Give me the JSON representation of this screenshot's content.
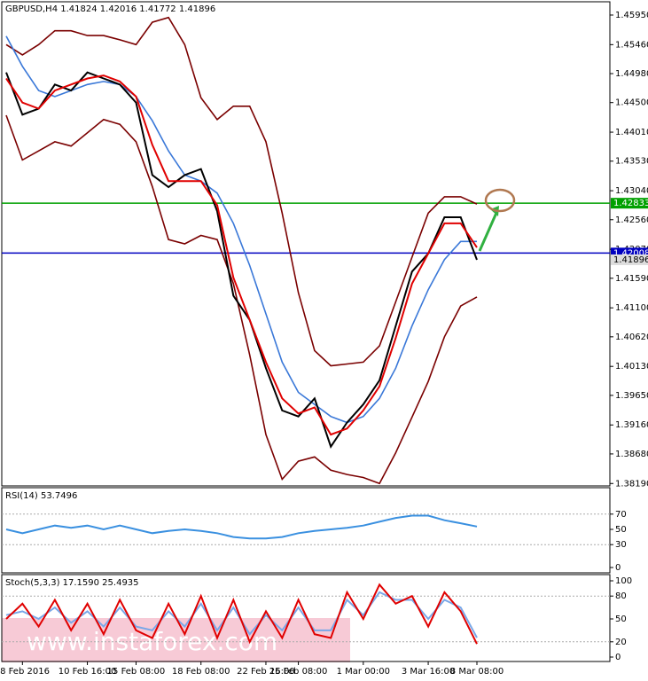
{
  "chart_data": [
    {
      "type": "line",
      "title": "GBPUSD,H4  1.41824 1.42016 1.41772 1.41896",
      "categories": [
        null,
        "8 Feb 2016",
        null,
        null,
        null,
        "10 Feb 16:00",
        null,
        null,
        "15 Feb 08:00",
        null,
        null,
        null,
        "18 Feb 08:00",
        null,
        null,
        null,
        "22 Feb 16:00",
        null,
        "25 Feb 08:00",
        null,
        null,
        null,
        "1 Mar 00:00",
        null,
        null,
        null,
        "3 Mar 16:00",
        null,
        null,
        "8 Mar 08:00"
      ],
      "series": [
        {
          "color": "#7a0000",
          "values": [
            1.4546,
            1.4529,
            1.4546,
            1.4569,
            1.4569,
            1.4561,
            1.4561,
            1.4554,
            1.4546,
            1.4583,
            1.4591,
            1.4546,
            1.4458,
            1.4422,
            1.4444,
            1.4444,
            1.4385,
            1.4267,
            1.4135,
            1.4039,
            1.4014,
            1.4017,
            1.402,
            1.4047,
            1.412,
            1.4194,
            1.4267,
            1.4294,
            1.4294,
            1.4282
          ]
        },
        {
          "color": "#7a0000",
          "values": [
            1.4429,
            1.4355,
            1.437,
            1.4385,
            1.4378,
            1.44,
            1.4422,
            1.4414,
            1.4385,
            1.4311,
            1.4223,
            1.4216,
            1.423,
            1.4223,
            1.415,
            1.4032,
            1.39,
            1.3826,
            1.3856,
            1.3863,
            1.3841,
            1.3834,
            1.3829,
            1.3819,
            1.387,
            1.3929,
            1.3988,
            1.4062,
            1.4113,
            1.4128
          ]
        },
        {
          "color": "#3a78d8",
          "values": [
            1.456,
            1.451,
            1.447,
            1.446,
            1.447,
            1.448,
            1.4485,
            1.448,
            1.446,
            1.442,
            1.437,
            1.433,
            1.432,
            1.43,
            1.425,
            1.418,
            1.41,
            1.402,
            1.397,
            1.395,
            1.393,
            1.392,
            1.393,
            1.396,
            1.401,
            1.408,
            1.414,
            1.419,
            1.422,
            1.422
          ]
        },
        {
          "color": "#000000",
          "values": [
            1.45,
            1.443,
            1.444,
            1.448,
            1.447,
            1.45,
            1.449,
            1.448,
            1.445,
            1.433,
            1.431,
            1.433,
            1.434,
            1.427,
            1.413,
            1.409,
            1.401,
            1.394,
            1.393,
            1.396,
            1.388,
            1.392,
            1.395,
            1.399,
            1.408,
            1.417,
            1.42,
            1.426,
            1.426,
            1.41896
          ]
        },
        {
          "color": "#e00000",
          "values": [
            1.449,
            1.445,
            1.444,
            1.447,
            1.448,
            1.449,
            1.4495,
            1.4485,
            1.446,
            1.438,
            1.432,
            1.432,
            1.432,
            1.428,
            1.416,
            1.409,
            1.402,
            1.396,
            1.3935,
            1.3945,
            1.39,
            1.391,
            1.394,
            1.398,
            1.406,
            1.415,
            1.42,
            1.425,
            1.425,
            1.421
          ]
        }
      ],
      "levels": [
        {
          "value": 1.42833,
          "color": "#00a000"
        },
        {
          "value": 1.42008,
          "color": "#0000c0"
        }
      ],
      "last_price": 1.41896,
      "ylim": [
        1.3815,
        1.4617
      ],
      "yticks": [
        {
          "value": 1.4595,
          "label": "1.45950"
        },
        {
          "value": 1.4546,
          "label": "1.45460"
        },
        {
          "value": 1.4498,
          "label": "1.44980"
        },
        {
          "value": 1.445,
          "label": "1.44500"
        },
        {
          "value": 1.4401,
          "label": "1.44010"
        },
        {
          "value": 1.4353,
          "label": "1.43530"
        },
        {
          "value": 1.4304,
          "label": "1.43040"
        },
        {
          "value": 1.4256,
          "label": "1.42560"
        },
        {
          "value": 1.4207,
          "label": "1.42070"
        },
        {
          "value": 1.4159,
          "label": "1.41590"
        },
        {
          "value": 1.411,
          "label": "1.41100"
        },
        {
          "value": 1.4062,
          "label": "1.40620"
        },
        {
          "value": 1.4013,
          "label": "1.40130"
        },
        {
          "value": 1.3965,
          "label": "1.39650"
        },
        {
          "value": 1.3916,
          "label": "1.39160"
        },
        {
          "value": 1.3868,
          "label": "1.38680"
        },
        {
          "value": 1.3819,
          "label": "1.38190"
        }
      ],
      "watermark": "www.instaforex.com"
    },
    {
      "type": "line",
      "title": "RSI(14) 53.7496",
      "series": [
        {
          "color": "#3a90e0",
          "values": [
            50,
            45,
            50,
            55,
            52,
            55,
            50,
            55,
            50,
            45,
            48,
            50,
            48,
            45,
            40,
            38,
            38,
            40,
            45,
            48,
            50,
            52,
            55,
            60,
            65,
            68,
            68,
            62,
            58,
            53.7496
          ]
        }
      ],
      "levels": [
        70,
        30
      ],
      "ylim": [
        0,
        100
      ],
      "yticks": [
        70,
        50,
        30,
        0
      ]
    },
    {
      "type": "line",
      "title": "Stoch(5,3,3) 17.1590 25.4935",
      "series": [
        {
          "color": "#7aa8e8",
          "values": [
            55,
            60,
            50,
            65,
            45,
            60,
            40,
            65,
            40,
            35,
            60,
            40,
            70,
            35,
            65,
            30,
            55,
            35,
            65,
            35,
            35,
            75,
            55,
            85,
            75,
            75,
            50,
            75,
            65,
            25.4935
          ]
        },
        {
          "color": "#e00000",
          "values": [
            50,
            70,
            40,
            75,
            35,
            70,
            30,
            75,
            35,
            25,
            70,
            30,
            80,
            25,
            75,
            20,
            60,
            25,
            75,
            30,
            25,
            85,
            50,
            95,
            70,
            80,
            40,
            85,
            60,
            17.159
          ]
        }
      ],
      "levels": [
        80,
        20
      ],
      "ylim": [
        0,
        100
      ],
      "yticks": [
        100,
        80,
        50,
        20,
        0
      ]
    }
  ]
}
